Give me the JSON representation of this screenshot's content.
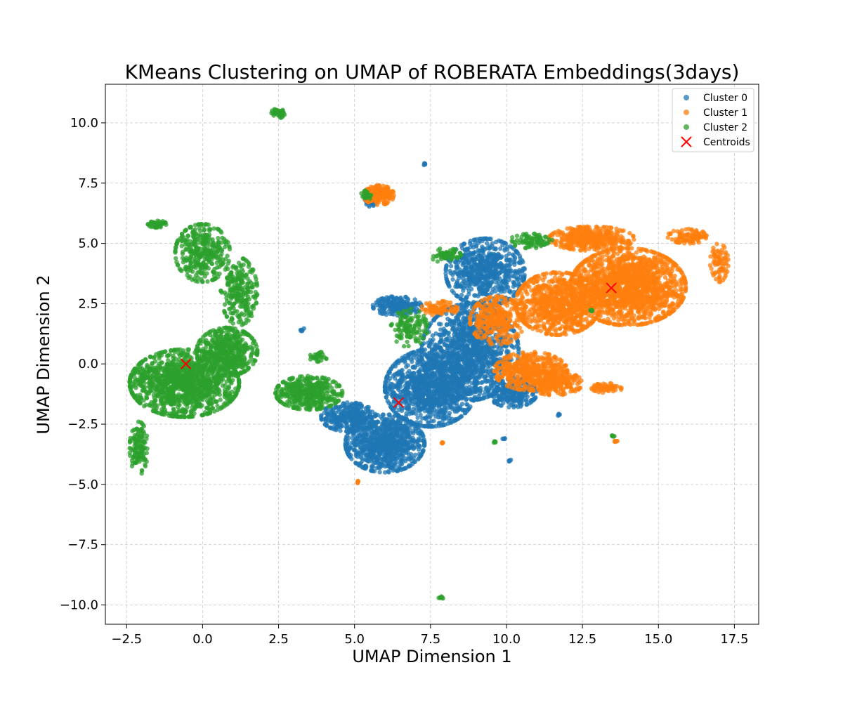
{
  "chart_data": {
    "type": "scatter",
    "title": "KMeans Clustering on UMAP of ROBERATA Embeddings(3days)",
    "xlabel": "UMAP Dimension 1",
    "ylabel": "UMAP Dimension 2",
    "xlim": [
      -3.2,
      18.3
    ],
    "ylim": [
      -10.8,
      11.6
    ],
    "xticks": [
      -2.5,
      0.0,
      2.5,
      5.0,
      7.5,
      10.0,
      12.5,
      15.0,
      17.5
    ],
    "xtick_labels": [
      "−2.5",
      "0.0",
      "2.5",
      "5.0",
      "7.5",
      "10.0",
      "12.5",
      "15.0",
      "17.5"
    ],
    "yticks": [
      -10.0,
      -7.5,
      -5.0,
      -2.5,
      0.0,
      2.5,
      5.0,
      7.5,
      10.0
    ],
    "ytick_labels": [
      "−10.0",
      "−7.5",
      "−5.0",
      "−2.5",
      "0.0",
      "2.5",
      "5.0",
      "7.5",
      "10.0"
    ],
    "grid": true,
    "legend_position": "top-right",
    "series": [
      {
        "name": "Cluster 0",
        "color": "#1f77b4",
        "regions": [
          {
            "cx": 6.0,
            "cy": -3.3,
            "rx": 1.3,
            "ry": 1.2,
            "n": 900
          },
          {
            "cx": 7.5,
            "cy": -1.0,
            "rx": 1.5,
            "ry": 1.6,
            "n": 1100
          },
          {
            "cx": 8.8,
            "cy": 0.5,
            "rx": 1.6,
            "ry": 2.0,
            "n": 1200
          },
          {
            "cx": 9.3,
            "cy": 3.8,
            "rx": 1.3,
            "ry": 1.4,
            "n": 700
          },
          {
            "cx": 6.4,
            "cy": 2.4,
            "rx": 0.8,
            "ry": 0.4,
            "n": 200
          },
          {
            "cx": 4.8,
            "cy": -2.2,
            "rx": 0.9,
            "ry": 0.6,
            "n": 300
          },
          {
            "cx": 10.2,
            "cy": -1.2,
            "rx": 0.8,
            "ry": 0.6,
            "n": 250
          },
          {
            "cx": 5.5,
            "cy": 6.7,
            "rx": 0.2,
            "ry": 0.2,
            "n": 30
          },
          {
            "cx": 7.3,
            "cy": 8.3,
            "rx": 0.05,
            "ry": 0.05,
            "n": 6
          },
          {
            "cx": 3.3,
            "cy": 1.4,
            "rx": 0.08,
            "ry": 0.08,
            "n": 6
          },
          {
            "cx": 10.1,
            "cy": -4.0,
            "rx": 0.05,
            "ry": 0.05,
            "n": 5
          },
          {
            "cx": 11.7,
            "cy": -2.1,
            "rx": 0.05,
            "ry": 0.05,
            "n": 5
          },
          {
            "cx": 9.9,
            "cy": -3.1,
            "rx": 0.05,
            "ry": 0.05,
            "n": 5
          }
        ]
      },
      {
        "name": "Cluster 1",
        "color": "#ff7f0e",
        "regions": [
          {
            "cx": 14.0,
            "cy": 3.2,
            "rx": 1.9,
            "ry": 1.6,
            "n": 1600
          },
          {
            "cx": 11.7,
            "cy": 2.5,
            "rx": 1.4,
            "ry": 1.3,
            "n": 800
          },
          {
            "cx": 12.8,
            "cy": 5.2,
            "rx": 1.4,
            "ry": 0.5,
            "n": 400
          },
          {
            "cx": 10.8,
            "cy": -0.3,
            "rx": 1.2,
            "ry": 0.8,
            "n": 450
          },
          {
            "cx": 11.6,
            "cy": -0.8,
            "rx": 0.9,
            "ry": 0.5,
            "n": 200
          },
          {
            "cx": 9.7,
            "cy": 1.8,
            "rx": 0.9,
            "ry": 1.0,
            "n": 300
          },
          {
            "cx": 5.8,
            "cy": 7.0,
            "rx": 0.5,
            "ry": 0.4,
            "n": 180
          },
          {
            "cx": 16.0,
            "cy": 5.3,
            "rx": 0.7,
            "ry": 0.3,
            "n": 100
          },
          {
            "cx": 17.0,
            "cy": 4.2,
            "rx": 0.3,
            "ry": 0.8,
            "n": 80
          },
          {
            "cx": 13.3,
            "cy": -1.0,
            "rx": 0.5,
            "ry": 0.2,
            "n": 60
          },
          {
            "cx": 7.8,
            "cy": 2.3,
            "rx": 0.6,
            "ry": 0.3,
            "n": 80
          },
          {
            "cx": 13.6,
            "cy": -3.2,
            "rx": 0.08,
            "ry": 0.08,
            "n": 8
          },
          {
            "cx": 7.9,
            "cy": -3.3,
            "rx": 0.05,
            "ry": 0.05,
            "n": 5
          },
          {
            "cx": 5.1,
            "cy": -4.9,
            "rx": 0.05,
            "ry": 0.05,
            "n": 5
          }
        ]
      },
      {
        "name": "Cluster 2",
        "color": "#2ca02c",
        "regions": [
          {
            "cx": -0.6,
            "cy": -0.8,
            "rx": 1.8,
            "ry": 1.4,
            "n": 1300
          },
          {
            "cx": 0.8,
            "cy": 0.5,
            "rx": 1.0,
            "ry": 1.0,
            "n": 500
          },
          {
            "cx": 0.0,
            "cy": 4.6,
            "rx": 0.9,
            "ry": 1.2,
            "n": 350
          },
          {
            "cx": 1.2,
            "cy": 3.0,
            "rx": 0.6,
            "ry": 1.4,
            "n": 250
          },
          {
            "cx": -1.5,
            "cy": 5.8,
            "rx": 0.3,
            "ry": 0.15,
            "n": 50
          },
          {
            "cx": 3.5,
            "cy": -1.2,
            "rx": 1.1,
            "ry": 0.7,
            "n": 450
          },
          {
            "cx": -2.1,
            "cy": -3.5,
            "rx": 0.3,
            "ry": 1.1,
            "n": 130
          },
          {
            "cx": 2.5,
            "cy": 10.4,
            "rx": 0.25,
            "ry": 0.2,
            "n": 40
          },
          {
            "cx": 6.8,
            "cy": 1.5,
            "rx": 0.6,
            "ry": 0.8,
            "n": 120
          },
          {
            "cx": 8.0,
            "cy": 4.5,
            "rx": 0.5,
            "ry": 0.3,
            "n": 60
          },
          {
            "cx": 10.8,
            "cy": 5.1,
            "rx": 0.7,
            "ry": 0.3,
            "n": 80
          },
          {
            "cx": 5.4,
            "cy": 7.0,
            "rx": 0.2,
            "ry": 0.2,
            "n": 25
          },
          {
            "cx": 12.8,
            "cy": 2.2,
            "rx": 0.05,
            "ry": 0.05,
            "n": 6
          },
          {
            "cx": 7.85,
            "cy": -9.7,
            "rx": 0.08,
            "ry": 0.08,
            "n": 8
          },
          {
            "cx": 9.6,
            "cy": -3.25,
            "rx": 0.05,
            "ry": 0.05,
            "n": 5
          },
          {
            "cx": 13.5,
            "cy": -3.0,
            "rx": 0.05,
            "ry": 0.05,
            "n": 5
          },
          {
            "cx": 3.8,
            "cy": 0.3,
            "rx": 0.3,
            "ry": 0.2,
            "n": 30
          }
        ]
      }
    ],
    "centroids": {
      "name": "Centroids",
      "color": "#ff0000",
      "points": [
        {
          "x": -0.55,
          "y": 0.0
        },
        {
          "x": 6.45,
          "y": -1.6
        },
        {
          "x": 13.45,
          "y": 3.15
        }
      ]
    }
  }
}
